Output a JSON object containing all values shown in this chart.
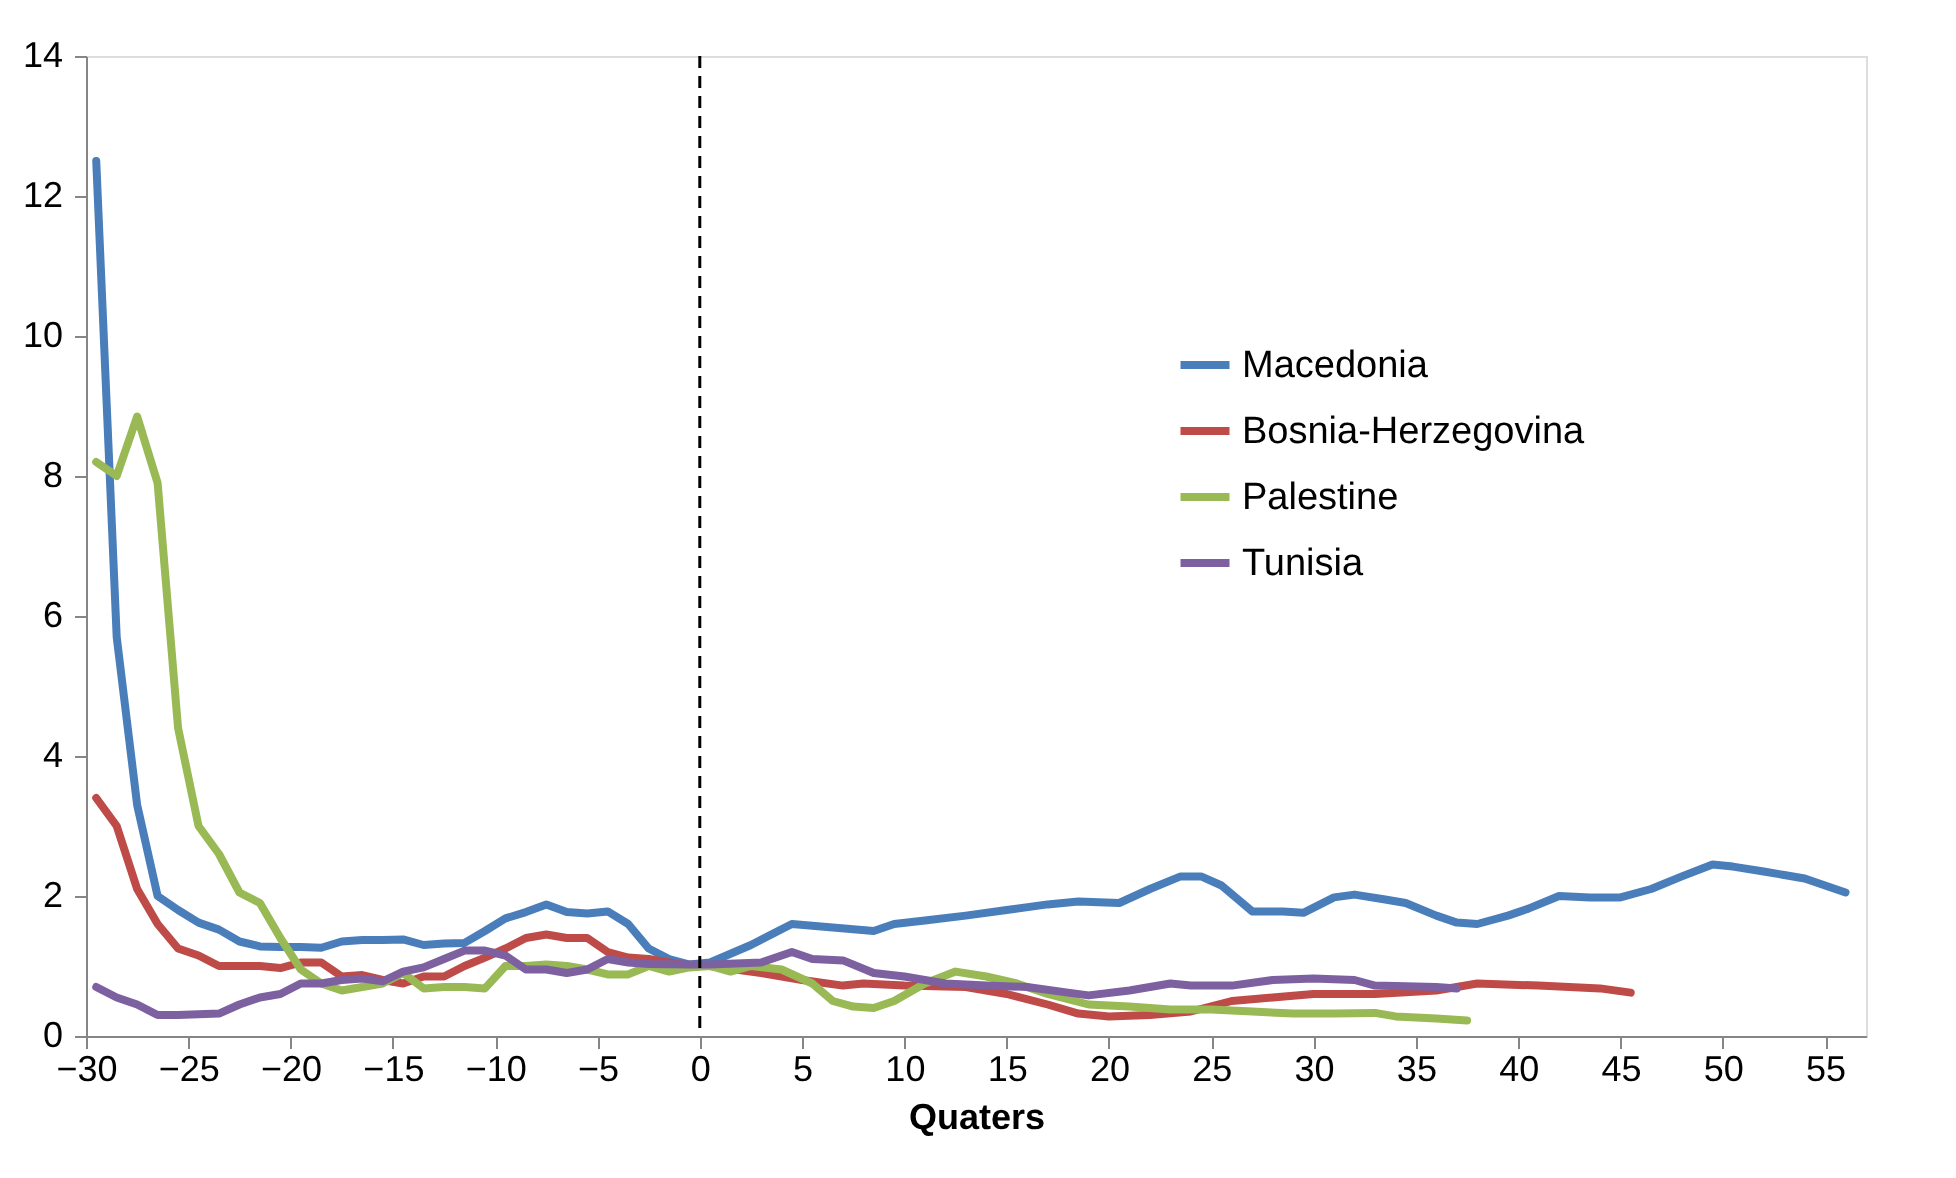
{
  "chart_data": {
    "type": "line",
    "xlabel": "Quaters",
    "xlim": [
      -30,
      57
    ],
    "xticks": [
      -30,
      -25,
      -20,
      -15,
      -10,
      -5,
      0,
      5,
      10,
      15,
      20,
      25,
      30,
      35,
      40,
      45,
      50,
      55
    ],
    "ylim": [
      0,
      14
    ],
    "yticks": [
      0,
      2,
      4,
      6,
      8,
      10,
      12,
      14
    ],
    "grid": false,
    "legend": "top right",
    "marker": "none",
    "line_style": "solid",
    "ref_lines": [
      {
        "axis": "x",
        "value": 0,
        "color": "#000000",
        "line_style": "dashed"
      }
    ],
    "series": [
      {
        "name": "Macedonia",
        "color": "#4a7ebb",
        "x": [
          -29.5,
          -28.5,
          -27.5,
          -26.5,
          -25.5,
          -24.5,
          -23.5,
          -22.5,
          -21.5,
          -20.5,
          -19.5,
          -18.5,
          -17.5,
          -16.5,
          -15.5,
          -14.5,
          -13.5,
          -12.5,
          -11.5,
          -10.5,
          -9.5,
          -8.5,
          -7.5,
          -6.5,
          -5.5,
          -4.5,
          -3.5,
          -2.5,
          -1.5,
          -0.5,
          0.5,
          2.5,
          4.5,
          6.5,
          8.5,
          9.5,
          11,
          13,
          15,
          17,
          18.5,
          20.5,
          22,
          23.5,
          24.5,
          25.5,
          27,
          28.5,
          29.5,
          31,
          32,
          33.5,
          34.5,
          36,
          37,
          38,
          39.5,
          40.5,
          42,
          43.5,
          45,
          46.5,
          48,
          49.5,
          50.5,
          52,
          53,
          54,
          55,
          56
        ],
        "values": [
          12.5,
          5.7,
          3.3,
          2.0,
          1.8,
          1.62,
          1.52,
          1.35,
          1.28,
          1.27,
          1.27,
          1.26,
          1.35,
          1.37,
          1.37,
          1.38,
          1.3,
          1.32,
          1.33,
          1.5,
          1.68,
          1.77,
          1.88,
          1.77,
          1.75,
          1.78,
          1.6,
          1.25,
          1.1,
          1.02,
          1.05,
          1.3,
          1.6,
          1.55,
          1.5,
          1.6,
          1.65,
          1.72,
          1.8,
          1.88,
          1.92,
          1.9,
          2.1,
          2.28,
          2.28,
          2.15,
          1.78,
          1.78,
          1.76,
          1.98,
          2.02,
          1.95,
          1.9,
          1.72,
          1.62,
          1.6,
          1.72,
          1.82,
          2.0,
          1.98,
          1.98,
          2.1,
          2.28,
          2.45,
          2.42,
          2.35,
          2.3,
          2.25,
          2.15,
          2.05
        ]
      },
      {
        "name": "Bosnia-Herzegovina",
        "color": "#be4b48",
        "x": [
          -29.5,
          -28.5,
          -27.5,
          -26.5,
          -25.5,
          -24.5,
          -23.5,
          -21.5,
          -20.5,
          -19.5,
          -18.5,
          -17.5,
          -16.5,
          -15.5,
          -14.5,
          -13.5,
          -12.5,
          -11.5,
          -10.5,
          -9.5,
          -8.5,
          -7.5,
          -6.5,
          -5.5,
          -4.5,
          -3.5,
          -2.5,
          -0.5,
          0.5,
          3,
          5,
          7,
          8,
          10,
          13,
          15,
          17,
          18.5,
          20,
          22,
          24,
          26,
          28,
          30,
          33,
          36,
          38,
          41,
          44,
          45.5
        ],
        "values": [
          3.4,
          3.0,
          2.1,
          1.6,
          1.25,
          1.15,
          1.0,
          1.0,
          0.97,
          1.05,
          1.05,
          0.85,
          0.87,
          0.8,
          0.75,
          0.85,
          0.85,
          1.0,
          1.12,
          1.25,
          1.4,
          1.45,
          1.4,
          1.4,
          1.2,
          1.12,
          1.1,
          1.0,
          1.0,
          0.9,
          0.8,
          0.72,
          0.75,
          0.72,
          0.7,
          0.6,
          0.45,
          0.32,
          0.28,
          0.3,
          0.35,
          0.5,
          0.55,
          0.6,
          0.6,
          0.65,
          0.75,
          0.72,
          0.68,
          0.62
        ]
      },
      {
        "name": "Palestine",
        "color": "#98b954",
        "x": [
          -29.5,
          -28.5,
          -27.5,
          -26.5,
          -25.5,
          -24.5,
          -23.5,
          -22.5,
          -21.5,
          -20.5,
          -19.5,
          -18.5,
          -17.5,
          -16.5,
          -15.5,
          -14.5,
          -13.5,
          -12.5,
          -11.5,
          -10.5,
          -9.5,
          -8.5,
          -7.5,
          -6.5,
          -5.5,
          -4.5,
          -3.5,
          -2.5,
          -1.5,
          -0.5,
          0.5,
          1.5,
          2.5,
          4,
          5.5,
          6.5,
          7.5,
          8.5,
          9.5,
          11,
          12.5,
          14,
          15.5,
          17,
          19,
          21,
          23,
          25,
          27,
          29,
          31,
          33,
          34,
          36,
          37.5
        ],
        "values": [
          8.2,
          8.0,
          8.85,
          7.9,
          4.4,
          3.0,
          2.6,
          2.05,
          1.9,
          1.4,
          0.95,
          0.75,
          0.65,
          0.7,
          0.75,
          0.9,
          0.68,
          0.7,
          0.7,
          0.68,
          1.0,
          1.0,
          1.02,
          1.0,
          0.95,
          0.88,
          0.88,
          1.0,
          0.92,
          0.98,
          1.0,
          0.92,
          1.0,
          0.95,
          0.75,
          0.5,
          0.42,
          0.4,
          0.5,
          0.75,
          0.92,
          0.85,
          0.75,
          0.6,
          0.45,
          0.42,
          0.38,
          0.38,
          0.35,
          0.32,
          0.32,
          0.33,
          0.28,
          0.25,
          0.22
        ]
      },
      {
        "name": "Tunisia",
        "color": "#7d60a0",
        "x": [
          -29.5,
          -28.5,
          -27.5,
          -26.5,
          -25.5,
          -24.5,
          -23.5,
          -22.5,
          -21.5,
          -20.5,
          -19.5,
          -18.5,
          -17.5,
          -16.5,
          -15.5,
          -14.5,
          -13.5,
          -12.5,
          -11.5,
          -10.5,
          -9.5,
          -8.5,
          -7.5,
          -6.5,
          -5.5,
          -4.5,
          -3.5,
          -2.5,
          -0.5,
          0.5,
          3,
          4.5,
          5.5,
          7,
          8.5,
          10,
          12,
          14,
          16,
          18,
          19,
          21,
          23,
          24,
          26,
          28,
          30,
          32,
          33,
          36,
          37
        ],
        "values": [
          0.7,
          0.55,
          0.45,
          0.3,
          0.3,
          0.31,
          0.32,
          0.45,
          0.55,
          0.6,
          0.75,
          0.75,
          0.8,
          0.82,
          0.78,
          0.92,
          0.98,
          1.1,
          1.22,
          1.22,
          1.15,
          0.95,
          0.95,
          0.9,
          0.95,
          1.1,
          1.05,
          1.03,
          1.02,
          1.02,
          1.05,
          1.2,
          1.1,
          1.08,
          0.9,
          0.85,
          0.75,
          0.72,
          0.7,
          0.62,
          0.58,
          0.65,
          0.75,
          0.72,
          0.72,
          0.8,
          0.82,
          0.8,
          0.72,
          0.7,
          0.68
        ]
      }
    ]
  }
}
